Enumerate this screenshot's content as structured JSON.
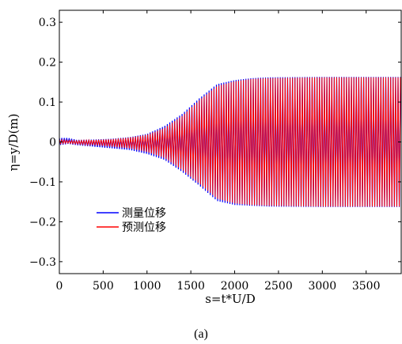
{
  "chart_data": {
    "type": "line",
    "title": "",
    "xlabel": "s=t*U/D",
    "ylabel": "η=y/D(m)",
    "xlim": [
      0,
      3900
    ],
    "ylim": [
      -0.33,
      0.33
    ],
    "x_ticks": [
      0,
      500,
      1000,
      1500,
      2000,
      2500,
      3000,
      3500
    ],
    "x_tick_labels": [
      "0",
      "500",
      "1000",
      "1500",
      "2000",
      "2500",
      "3000",
      "3500"
    ],
    "y_ticks": [
      0.3,
      0.2,
      0.1,
      0,
      -0.1,
      -0.2,
      -0.3
    ],
    "y_tick_labels": [
      "0.3",
      "0.2",
      "0.1",
      "0",
      "−0.1",
      "−0.2",
      "−0.3"
    ],
    "grid": false,
    "legend_position": "lower-left",
    "series": [
      {
        "name": "测量位移",
        "color": "#0000ff",
        "envelope": {
          "x": [
            0,
            100,
            200,
            400,
            600,
            800,
            1000,
            1200,
            1400,
            1600,
            1800,
            2000,
            2200,
            2400,
            3000,
            3900
          ],
          "upper": [
            0.01,
            0.01,
            0.005,
            0.006,
            0.008,
            0.012,
            0.02,
            0.04,
            0.07,
            0.11,
            0.145,
            0.155,
            0.16,
            0.162,
            0.163,
            0.163
          ],
          "lower": [
            -0.008,
            -0.005,
            -0.008,
            -0.012,
            -0.016,
            -0.02,
            -0.03,
            -0.045,
            -0.075,
            -0.11,
            -0.148,
            -0.158,
            -0.16,
            -0.162,
            -0.163,
            -0.163
          ]
        }
      },
      {
        "name": "预测位移",
        "color": "#ff0000",
        "envelope": {
          "x": [
            0,
            100,
            200,
            400,
            600,
            800,
            1000,
            1200,
            1400,
            1600,
            1800,
            2000,
            2200,
            2400,
            3000,
            3900
          ],
          "upper": [
            0.006,
            0.004,
            0.003,
            0.005,
            0.007,
            0.011,
            0.018,
            0.035,
            0.065,
            0.105,
            0.14,
            0.152,
            0.158,
            0.16,
            0.162,
            0.162
          ],
          "lower": [
            -0.004,
            -0.003,
            -0.005,
            -0.008,
            -0.012,
            -0.016,
            -0.025,
            -0.04,
            -0.07,
            -0.105,
            -0.142,
            -0.154,
            -0.158,
            -0.16,
            -0.162,
            -0.162
          ]
        }
      }
    ]
  },
  "caption": "(a)"
}
